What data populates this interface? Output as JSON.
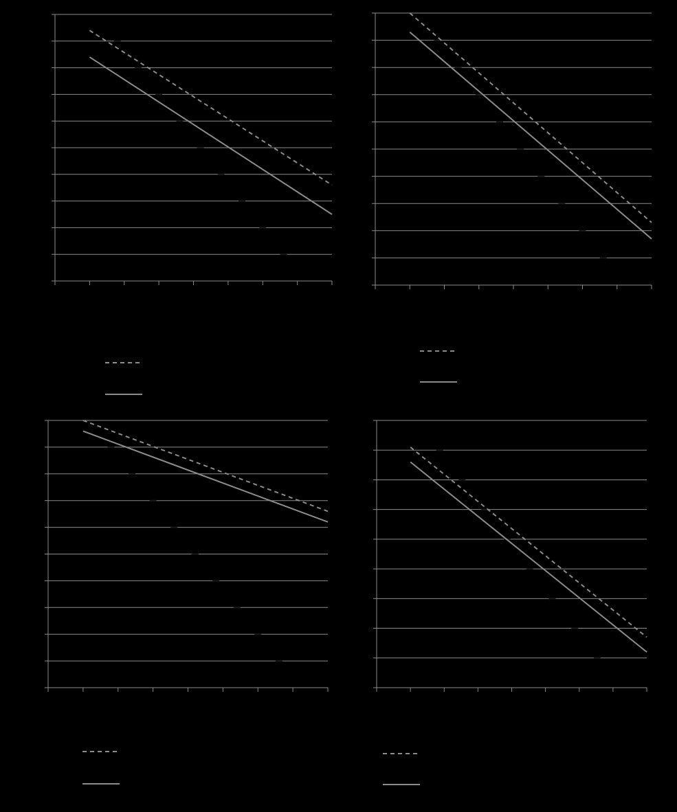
{
  "chart_data": [
    {
      "type": "line",
      "grid": true,
      "x_ticks": 8,
      "y_ticks": 10,
      "series": [
        {
          "style": "dashed",
          "color": "#8c8c8c",
          "x": [
            1,
            8
          ],
          "y": [
            9.4,
            3.6
          ]
        },
        {
          "style": "solid",
          "color": "#8c8c8c",
          "x": [
            1,
            8
          ],
          "y": [
            8.4,
            2.5
          ]
        }
      ],
      "xlim": [
        0,
        8
      ],
      "ylim": [
        0,
        10
      ]
    },
    {
      "type": "line",
      "grid": true,
      "x_ticks": 8,
      "y_ticks": 10,
      "series": [
        {
          "style": "dashed",
          "color": "#8c8c8c",
          "x": [
            1,
            8
          ],
          "y": [
            10.0,
            2.3
          ]
        },
        {
          "style": "solid",
          "color": "#8c8c8c",
          "x": [
            1,
            8
          ],
          "y": [
            9.3,
            1.7
          ]
        }
      ],
      "xlim": [
        0,
        8
      ],
      "ylim": [
        0,
        10
      ]
    },
    {
      "type": "line",
      "grid": true,
      "x_ticks": 8,
      "y_ticks": 10,
      "series": [
        {
          "style": "dashed",
          "color": "#8c8c8c",
          "x": [
            1,
            8
          ],
          "y": [
            10.0,
            6.6
          ]
        },
        {
          "style": "solid",
          "color": "#8c8c8c",
          "x": [
            1,
            8
          ],
          "y": [
            9.6,
            6.2
          ]
        }
      ],
      "xlim": [
        0,
        8
      ],
      "ylim": [
        0,
        10
      ]
    },
    {
      "type": "line",
      "grid": true,
      "x_ticks": 8,
      "y_ticks": 9,
      "series": [
        {
          "style": "dashed",
          "color": "#8c8c8c",
          "x": [
            1,
            8
          ],
          "y": [
            8.1,
            1.7
          ]
        },
        {
          "style": "solid",
          "color": "#8c8c8c",
          "x": [
            1,
            8
          ],
          "y": [
            7.6,
            1.2
          ]
        }
      ],
      "xlim": [
        0,
        8
      ],
      "ylim": [
        0,
        9
      ]
    }
  ]
}
